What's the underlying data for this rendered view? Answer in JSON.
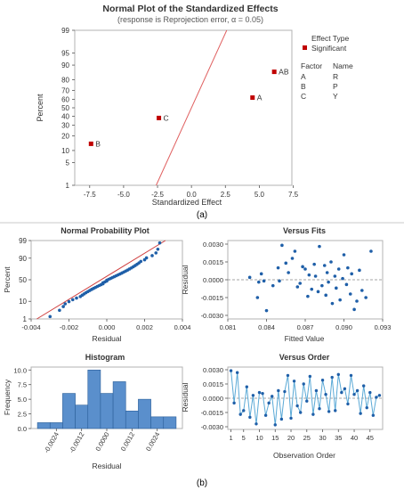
{
  "chart_data": [
    {
      "type": "scatter",
      "title": "Normal Plot of the Standardized Effects",
      "subtitle": "(response is Reprojection error, α = 0.05)",
      "xlabel": "Standardized Effect",
      "ylabel": "Percent",
      "xlim": [
        -8.6,
        7.4
      ],
      "ylim": [
        1,
        99
      ],
      "y_scale": "normal-probability",
      "x_ticks": [
        "-7.5",
        "-5.0",
        "-2.5",
        "0.0",
        "2.5",
        "5.0",
        "7.5"
      ],
      "y_ticks": [
        "1",
        "5",
        "10",
        "20",
        "30",
        "40",
        "50",
        "60",
        "70",
        "80",
        "90",
        "95",
        "99"
      ],
      "points": [
        {
          "label": "B",
          "x": -7.4,
          "y": 14
        },
        {
          "label": "C",
          "x": -2.4,
          "y": 38
        },
        {
          "label": "A",
          "x": 4.5,
          "y": 62
        },
        {
          "label": "AB",
          "x": 6.1,
          "y": 86
        }
      ],
      "reference_line": {
        "x": [
          -2.6,
          2.6
        ],
        "y": [
          1,
          99
        ]
      },
      "legend": {
        "placement": "right",
        "title": "Effect Type",
        "entries": [
          "Significant"
        ],
        "factor_header": "Factor",
        "name_header": "Name",
        "factors": [
          {
            "factor": "A",
            "name": "R"
          },
          {
            "factor": "B",
            "name": "P"
          },
          {
            "factor": "C",
            "name": "Y"
          }
        ]
      },
      "panel_label": "(a)",
      "colors": {
        "point": "#c00000",
        "line": "#e06060",
        "frame": "#b3b3b3"
      }
    },
    {
      "type": "scatter",
      "title": "Normal Probability Plot",
      "xlabel": "Residual",
      "ylabel": "Percent",
      "xlim": [
        -0.004,
        0.004
      ],
      "ylim": [
        1,
        99
      ],
      "y_scale": "normal-probability",
      "x_ticks": [
        "-0.004",
        "-0.002",
        "0.000",
        "0.002",
        "0.004"
      ],
      "y_ticks": [
        "1",
        "10",
        "50",
        "90",
        "99"
      ],
      "reference_line": {
        "x": [
          -0.0037,
          0.0031
        ],
        "y": [
          1,
          99
        ]
      },
      "residuals": [
        -0.003,
        -0.0025,
        -0.0023,
        -0.0022,
        -0.002,
        -0.0018,
        -0.0016,
        -0.0014,
        -0.0013,
        -0.0012,
        -0.0011,
        -0.001,
        -0.0009,
        -0.0008,
        -0.0007,
        -0.0006,
        -0.0005,
        -0.0004,
        -0.0003,
        -0.0002,
        -0.0002,
        -0.0001,
        0.0,
        0.0,
        0.0001,
        0.0002,
        0.0003,
        0.0004,
        0.0005,
        0.0006,
        0.0007,
        0.0008,
        0.0009,
        0.001,
        0.0011,
        0.0012,
        0.0013,
        0.0014,
        0.0015,
        0.0016,
        0.0017,
        0.0018,
        0.002,
        0.0021,
        0.0024,
        0.0026,
        0.0027,
        0.0028
      ],
      "colors": {
        "point": "#1f5fa8",
        "line": "#d04040"
      }
    },
    {
      "type": "scatter",
      "title": "Versus Fits",
      "xlabel": "Fitted Value",
      "ylabel": "Residual",
      "xlim": [
        0.081,
        0.093
      ],
      "ylim": [
        -0.003,
        0.003
      ],
      "x_ticks": [
        "0.081",
        "0.084",
        "0.087",
        "0.090",
        "0.093"
      ],
      "y_ticks": [
        "0.0030",
        "0.0015",
        "0.0000",
        "-0.0015",
        "-0.0030"
      ],
      "points": [
        {
          "x": 0.0827,
          "y": 0.0002
        },
        {
          "x": 0.0833,
          "y": -0.0015
        },
        {
          "x": 0.0834,
          "y": -0.0002
        },
        {
          "x": 0.0836,
          "y": 0.0005
        },
        {
          "x": 0.0838,
          "y": -0.0001
        },
        {
          "x": 0.084,
          "y": -0.0026
        },
        {
          "x": 0.0845,
          "y": -0.0005
        },
        {
          "x": 0.0849,
          "y": 0.001
        },
        {
          "x": 0.085,
          "y": -0.0001
        },
        {
          "x": 0.0852,
          "y": 0.0029
        },
        {
          "x": 0.0855,
          "y": 0.0014
        },
        {
          "x": 0.0857,
          "y": 0.0006
        },
        {
          "x": 0.086,
          "y": 0.0018
        },
        {
          "x": 0.0862,
          "y": 0.0024
        },
        {
          "x": 0.0864,
          "y": -0.0006
        },
        {
          "x": 0.0866,
          "y": -0.0003
        },
        {
          "x": 0.0868,
          "y": 0.0011
        },
        {
          "x": 0.087,
          "y": 0.0009
        },
        {
          "x": 0.0872,
          "y": -0.0014
        },
        {
          "x": 0.0873,
          "y": 0.0004
        },
        {
          "x": 0.0875,
          "y": -0.0008
        },
        {
          "x": 0.0877,
          "y": 0.0013
        },
        {
          "x": 0.0878,
          "y": 0.0003
        },
        {
          "x": 0.088,
          "y": -0.001
        },
        {
          "x": 0.0881,
          "y": 0.0028
        },
        {
          "x": 0.0883,
          "y": -0.0005
        },
        {
          "x": 0.0885,
          "y": 0.0012
        },
        {
          "x": 0.0886,
          "y": -0.0013
        },
        {
          "x": 0.0887,
          "y": 0.0006
        },
        {
          "x": 0.0888,
          "y": -0.0002
        },
        {
          "x": 0.089,
          "y": 0.0015
        },
        {
          "x": 0.0891,
          "y": -0.002
        },
        {
          "x": 0.0893,
          "y": 0.0003
        },
        {
          "x": 0.0894,
          "y": -0.0007
        },
        {
          "x": 0.0896,
          "y": 0.0009
        },
        {
          "x": 0.0897,
          "y": -0.0017
        },
        {
          "x": 0.0899,
          "y": 0.0001
        },
        {
          "x": 0.09,
          "y": 0.0021
        },
        {
          "x": 0.0902,
          "y": -0.0004
        },
        {
          "x": 0.0903,
          "y": 0.001
        },
        {
          "x": 0.0905,
          "y": -0.0012
        },
        {
          "x": 0.0906,
          "y": 0.0005
        },
        {
          "x": 0.0908,
          "y": -0.0025
        },
        {
          "x": 0.091,
          "y": -0.0018
        },
        {
          "x": 0.0912,
          "y": 0.0008
        },
        {
          "x": 0.0914,
          "y": -0.0009
        },
        {
          "x": 0.0917,
          "y": -0.0015
        },
        {
          "x": 0.0921,
          "y": 0.0024
        }
      ],
      "reference_line": {
        "y": 0,
        "style": "dashed"
      },
      "colors": {
        "point": "#1f5fa8",
        "line": "#888888"
      }
    },
    {
      "type": "bar",
      "title": "Histogram",
      "xlabel": "Residual",
      "ylabel": "Frequency",
      "x_ticks": [
        "-0.0024",
        "-0.0012",
        "0.0000",
        "0.0012",
        "0.0024"
      ],
      "y_ticks": [
        "0.0",
        "2.5",
        "5.0",
        "7.5",
        "10.0"
      ],
      "ylim": [
        0,
        10.5
      ],
      "bin_edges": [
        -0.0033,
        -0.0027,
        -0.0021,
        -0.0015,
        -0.0009,
        -0.0003,
        0.0003,
        0.0009,
        0.0015,
        0.0021,
        0.0027,
        0.0033
      ],
      "values": [
        1,
        1,
        6,
        4,
        10,
        6,
        8,
        3,
        5,
        2,
        2
      ],
      "colors": {
        "bar": "#5a8fcc",
        "edge": "#2b5f99"
      }
    },
    {
      "type": "line",
      "title": "Versus Order",
      "xlabel": "Observation Order",
      "ylabel": "Residual",
      "xlim": [
        0,
        49
      ],
      "ylim": [
        -0.003,
        0.003
      ],
      "x_ticks": [
        "1",
        "5",
        "10",
        "15",
        "20",
        "25",
        "30",
        "35",
        "40",
        "45"
      ],
      "y_ticks": [
        "0.0030",
        "0.0015",
        "0.0000",
        "-0.0015",
        "-0.0030"
      ],
      "values": [
        0.0029,
        -0.0005,
        0.0027,
        -0.0017,
        -0.0013,
        0.0012,
        -0.002,
        0.0003,
        -0.0027,
        0.0006,
        0.0005,
        -0.0018,
        -0.0005,
        0.0002,
        -0.0028,
        0.0008,
        -0.0022,
        0.0007,
        0.0024,
        -0.0021,
        0.0018,
        -0.0008,
        -0.0015,
        0.0015,
        -0.0003,
        0.0023,
        -0.0017,
        0.0008,
        -0.0011,
        0.0019,
        0.0004,
        -0.0014,
        0.0022,
        -0.0013,
        0.0025,
        0.0006,
        0.001,
        -0.0006,
        0.0024,
        0.0004,
        0.0008,
        -0.0016,
        0.0013,
        -0.001,
        0.0006,
        -0.0018,
        0.0001,
        0.0003
      ],
      "reference_line": {
        "y": 0,
        "style": "dashed"
      },
      "colors": {
        "point": "#1f5fa8",
        "line": "#5aa9d6"
      }
    }
  ],
  "panel_b_label": "(b)"
}
